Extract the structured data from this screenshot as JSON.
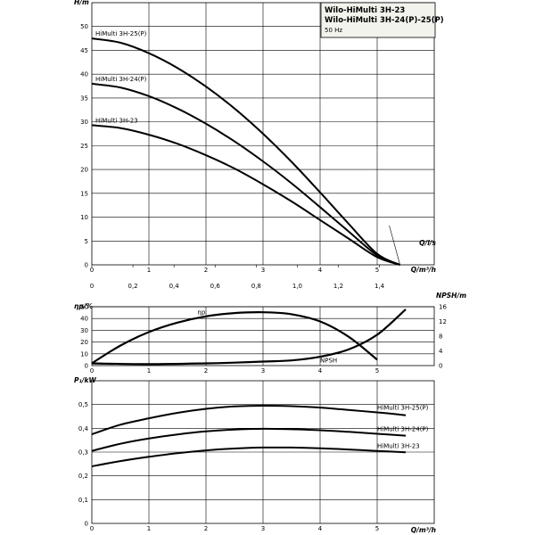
{
  "title_block": {
    "line1": "Wilo-HiMulti 3H-23",
    "line2": "Wilo-HiMulti 3H-24(P)-25(P)",
    "frequency": "50 Hz"
  },
  "chart_data": [
    {
      "type": "line",
      "panel": "head",
      "ylabel": "H/m",
      "xlabel": "Q/m³/h",
      "xlabel_secondary": "Q/l/s",
      "xlim": [
        0,
        6
      ],
      "ylim": [
        0,
        55
      ],
      "x_ticks": [
        "0",
        "1",
        "2",
        "3",
        "4",
        "5"
      ],
      "x_ticks_secondary": [
        "0",
        "0,2",
        "0,4",
        "0,6",
        "0,8",
        "1,0",
        "1,2",
        "1,4"
      ],
      "y_ticks": [
        "0",
        "5",
        "10",
        "15",
        "20",
        "25",
        "30",
        "35",
        "40",
        "45",
        "50"
      ],
      "grid": true,
      "series": [
        {
          "name": "HiMulti 3H-25(P)",
          "x": [
            0,
            0.5,
            1,
            1.5,
            2,
            2.5,
            3,
            3.5,
            4,
            4.5,
            5,
            5.4
          ],
          "y": [
            47.5,
            46.6,
            44.4,
            41.3,
            37.4,
            32.8,
            27.5,
            21.6,
            15.2,
            8.6,
            2.3,
            0
          ]
        },
        {
          "name": "HiMulti 3H-24(P)",
          "x": [
            0,
            0.5,
            1,
            1.5,
            2,
            2.5,
            3,
            3.5,
            4,
            4.5,
            5,
            5.4
          ],
          "y": [
            38.0,
            37.2,
            35.4,
            32.8,
            29.6,
            25.9,
            21.7,
            17.1,
            12.1,
            7.0,
            2.0,
            0
          ]
        },
        {
          "name": "HiMulti 3H-23",
          "x": [
            0,
            0.5,
            1,
            1.5,
            2,
            2.5,
            3,
            3.5,
            4,
            4.5,
            5,
            5.4
          ],
          "y": [
            29.3,
            28.7,
            27.3,
            25.4,
            23.0,
            20.2,
            16.9,
            13.3,
            9.4,
            5.5,
            1.6,
            0
          ]
        }
      ]
    },
    {
      "type": "line",
      "panel": "efficiency_npsh",
      "ylabel": "ηp/%",
      "ylabel_right": "NPSH/m",
      "ylim": [
        0,
        50
      ],
      "ylim_right": [
        0,
        16
      ],
      "y_ticks": [
        "0",
        "10",
        "20",
        "30",
        "40",
        "50"
      ],
      "y_ticks_right": [
        "0",
        "4",
        "8",
        "12",
        "16"
      ],
      "grid": true,
      "series": [
        {
          "name": "ηp",
          "x": [
            0,
            0.5,
            1,
            1.5,
            2,
            2.5,
            3,
            3.5,
            4,
            4.5,
            5
          ],
          "y": [
            2,
            17,
            28.5,
            36.5,
            41.8,
            44.6,
            45.3,
            43.6,
            37.5,
            24.5,
            5
          ]
        },
        {
          "name": "NPSH",
          "axis": "right",
          "x": [
            0,
            1,
            2,
            2.5,
            3,
            3.5,
            4,
            4.5,
            5,
            5.5
          ],
          "y": [
            0.6,
            0.4,
            0.6,
            0.8,
            1.1,
            1.4,
            2.4,
            4.4,
            8.4,
            15.3
          ]
        }
      ]
    },
    {
      "type": "line",
      "panel": "power",
      "ylabel": "P₁/kW",
      "xlabel": "Q/m³/h",
      "ylim": [
        0,
        0.6
      ],
      "x_ticks": [
        "0",
        "1",
        "2",
        "3",
        "4",
        "5"
      ],
      "y_ticks": [
        "0",
        "0,1",
        "0,2",
        "0,3",
        "0,4",
        "0,5"
      ],
      "grid": true,
      "series": [
        {
          "name": "HiMulti 3H-25(P)",
          "x": [
            0,
            0.5,
            1,
            1.5,
            2,
            2.5,
            3,
            3.5,
            4,
            4.5,
            5,
            5.5
          ],
          "y": [
            0.375,
            0.415,
            0.442,
            0.465,
            0.482,
            0.492,
            0.495,
            0.493,
            0.487,
            0.477,
            0.467,
            0.455
          ]
        },
        {
          "name": "HiMulti 3H-24(P)",
          "x": [
            0,
            0.5,
            1,
            1.5,
            2,
            2.5,
            3,
            3.5,
            4,
            4.5,
            5,
            5.5
          ],
          "y": [
            0.305,
            0.335,
            0.357,
            0.374,
            0.387,
            0.395,
            0.398,
            0.396,
            0.392,
            0.385,
            0.377,
            0.369
          ]
        },
        {
          "name": "HiMulti 3H-23",
          "x": [
            0,
            0.5,
            1,
            1.5,
            2,
            2.5,
            3,
            3.5,
            4,
            4.5,
            5,
            5.5
          ],
          "y": [
            0.24,
            0.262,
            0.28,
            0.295,
            0.307,
            0.315,
            0.319,
            0.319,
            0.316,
            0.311,
            0.305,
            0.299
          ]
        }
      ]
    }
  ]
}
